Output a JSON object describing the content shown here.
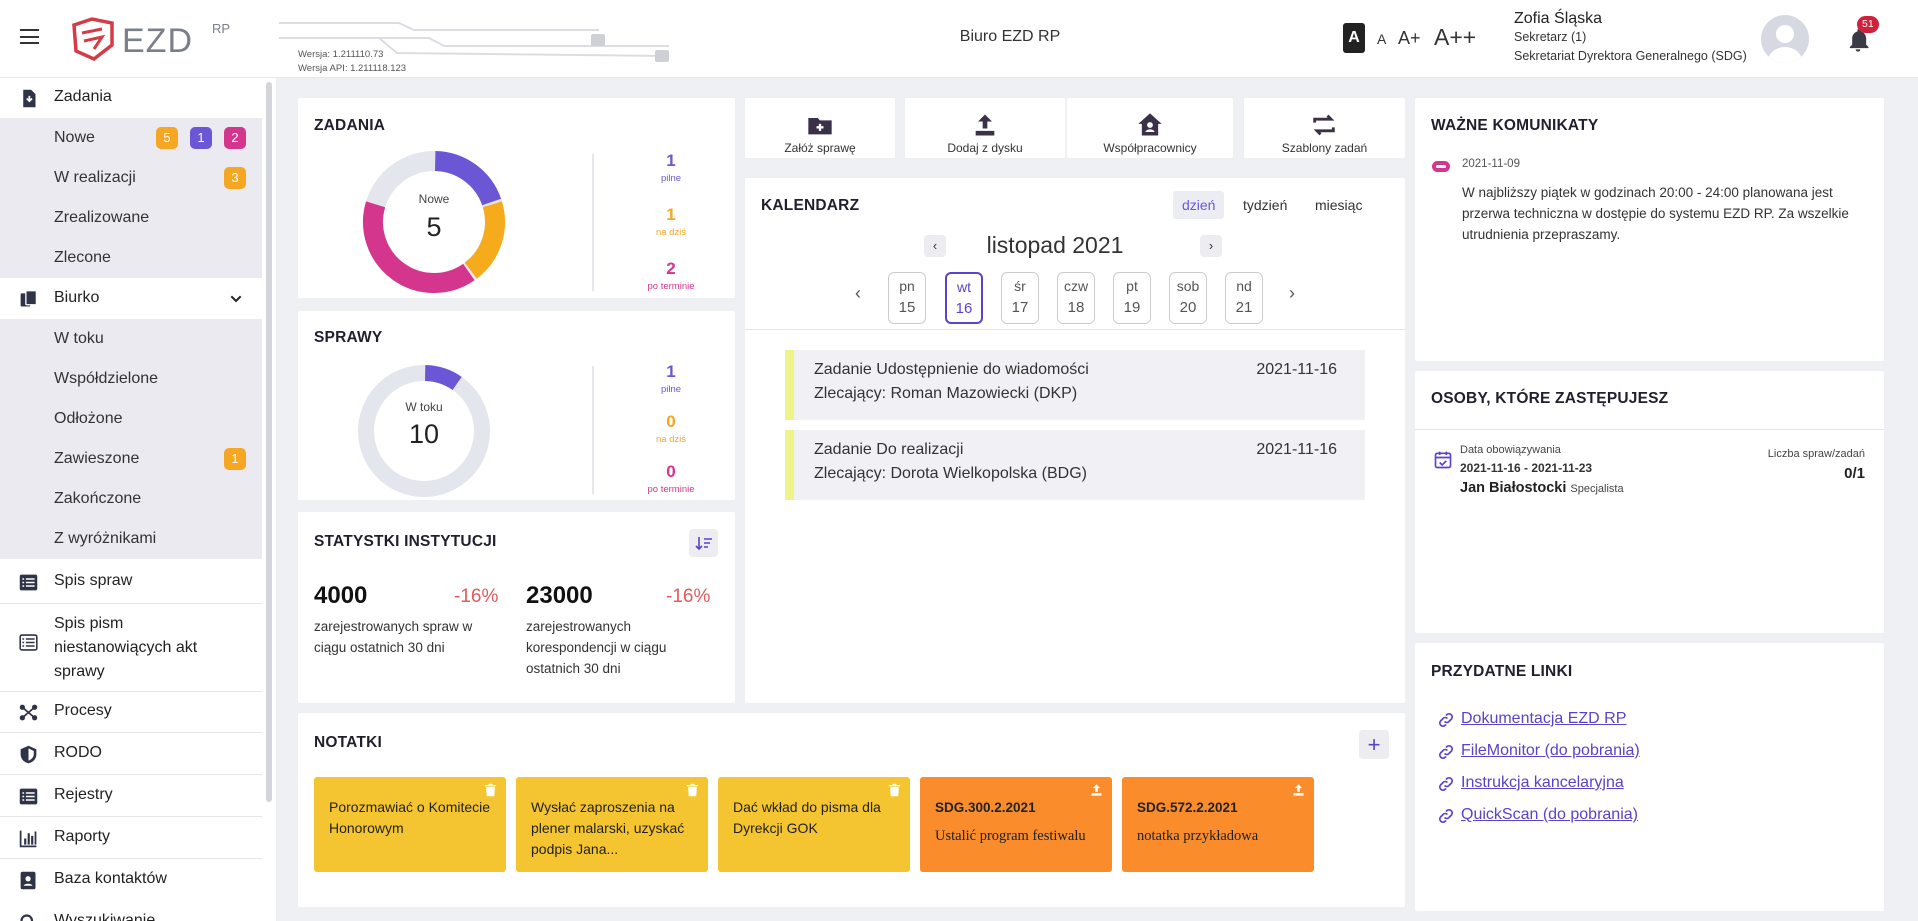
{
  "header": {
    "logo_text": "EZD",
    "logo_sup": "RP",
    "version": "Wersja: 1.211110.73",
    "api_version": "Wersja API: 1.211118.123",
    "title": "Biuro EZD RP",
    "font_sizes": [
      "A",
      "A",
      "A+",
      "A++"
    ],
    "user_name": "Zofia Śląska",
    "user_role": "Sekretarz (1)",
    "user_dept": "Sekretariat Dyrektora Generalnego (SDG)",
    "notifications": "51",
    "menu_icon": "hamburger-icon",
    "bell_icon": "bell-icon"
  },
  "sidebar": {
    "zadania": "Zadania",
    "nowe": "Nowe",
    "nowe_badges": [
      "5",
      "1",
      "2"
    ],
    "w_realizacji": "W realizacji",
    "w_realizacji_badge": "3",
    "zrealizowane": "Zrealizowane",
    "zlecone": "Zlecone",
    "biurko": "Biurko",
    "w_toku": "W toku",
    "wspoldzielone": "Współdzielone",
    "odlozone": "Odłożone",
    "zawieszone": "Zawieszone",
    "zawieszone_badge": "1",
    "zakonczone": "Zakończone",
    "z_wyroznikami": "Z wyróżnikami",
    "spis_spraw": "Spis spraw",
    "spis_pism": [
      "Spis pism",
      "niestanowiących akt",
      "sprawy"
    ],
    "procesy": "Procesy",
    "rodo": "RODO",
    "rejestry": "Rejestry",
    "raporty": "Raporty",
    "baza": "Baza kontaktów",
    "wyszukiwanie": "Wyszukiwanie",
    "badge_colors": {
      "orange": "#f5a623",
      "purple": "#6b57d6",
      "pink": "#d4368e"
    }
  },
  "zadania": {
    "title": "ZADANIA",
    "center_label": "Nowe",
    "center_value": "5",
    "stats": [
      {
        "n": "1",
        "l": "pilne"
      },
      {
        "n": "1",
        "l": "na dziś"
      },
      {
        "n": "2",
        "l": "po terminie"
      }
    ],
    "donut": [
      {
        "value": 1,
        "color": "#6b57d6"
      },
      {
        "value": 1,
        "color": "#f5ab1b"
      },
      {
        "value": 2,
        "color": "#d4368e"
      }
    ],
    "donut_rest": 1
  },
  "sprawy": {
    "title": "SPRAWY",
    "center_label": "W toku",
    "center_value": "10",
    "stats": [
      {
        "n": "1",
        "l": "pilne"
      },
      {
        "n": "0",
        "l": "na dziś"
      },
      {
        "n": "0",
        "l": "po terminie"
      }
    ],
    "donut": [
      {
        "value": 1,
        "color": "#6b57d6"
      }
    ],
    "donut_rest": 9
  },
  "statystyki": {
    "title": "STATYSTKI INSTYTUCJI",
    "v1": "4000",
    "p1": "-16%",
    "d1": [
      "zarejestrowanych spraw w",
      "ciągu ostatnich 30 dni"
    ],
    "v2": "23000",
    "p2": "-16%",
    "d2": [
      "zarejestrowanych",
      "korespondencji w ciągu",
      "ostatnich 30 dni"
    ]
  },
  "actions": [
    "Załóż sprawę",
    "Dodaj z dysku",
    "Współpracownicy",
    "Szablony zadań"
  ],
  "kalendarz": {
    "title": "KALENDARZ",
    "tabs": [
      "dzień",
      "tydzień",
      "miesiąc"
    ],
    "month": "listopad 2021",
    "days": [
      {
        "d": "pn",
        "n": "15"
      },
      {
        "d": "wt",
        "n": "16"
      },
      {
        "d": "śr",
        "n": "17"
      },
      {
        "d": "czw",
        "n": "18"
      },
      {
        "d": "pt",
        "n": "19"
      },
      {
        "d": "sob",
        "n": "20"
      },
      {
        "d": "nd",
        "n": "21"
      }
    ],
    "events": [
      {
        "title": "Zadanie Udostępnienie do wiadomości",
        "sub": "Zlecający: Roman Mazowiecki (DKP)",
        "date": "2021-11-16"
      },
      {
        "title": "Zadanie Do realizacji",
        "sub": "Zlecający: Dorota Wielkopolska (BDG)",
        "date": "2021-11-16"
      }
    ]
  },
  "komunikaty": {
    "title": "WAŻNE KOMUNIKATY",
    "date": "2021-11-09",
    "lines": [
      "W najbliższy piątek w godzinach 20:00 - 24:00 planowana jest",
      "przerwa techniczna w dostępie do systemu EZD RP. Za wszelkie",
      "utrudnienia przepraszamy."
    ]
  },
  "zastepujesz": {
    "title": "OSOBY, KTÓRE ZASTĘPUJESZ",
    "label_date": "Data obowiązywania",
    "range": "2021-11-16 - 2021-11-23",
    "name": "Jan Białostocki",
    "role": "Specjalista",
    "label_count": "Liczba spraw/zadań",
    "count": "0/1"
  },
  "linki": {
    "title": "PRZYDATNE LINKI",
    "items": [
      "Dokumentacja EZD RP",
      "FileMonitor (do pobrania)",
      "Instrukcja kancelaryjna",
      "QuickScan (do pobrania)"
    ]
  },
  "notatki": {
    "title": "NOTATKI",
    "items": [
      {
        "title": "",
        "text": "Porozmawiać o Komitecie Honorowym",
        "color": "#f5c531",
        "icon": "trash-icon"
      },
      {
        "title": "",
        "text": "Wysłać zaproszenia na plener malarski, uzyskać podpis Jana...",
        "color": "#f5c531",
        "icon": "trash-icon"
      },
      {
        "title": "",
        "text": "Dać wkład do pisma dla Dyrekcji GOK",
        "color": "#f5c531",
        "icon": "trash-icon"
      },
      {
        "title": "SDG.300.2.2021",
        "text": "Ustalić program festiwalu",
        "color": "#fb8c2c",
        "icon": "upload-icon"
      },
      {
        "title": "SDG.572.2.2021",
        "text": "notatka przykładowa",
        "color": "#fb8c2c",
        "icon": "upload-icon"
      }
    ]
  }
}
